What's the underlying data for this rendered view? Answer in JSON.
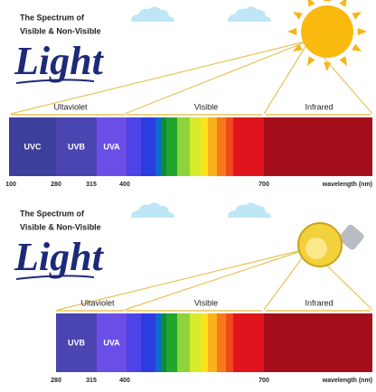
{
  "panels": [
    {
      "title_line1": "The Spectrum of",
      "title_line2": "Visible & Non-Visible",
      "script_title": "Light",
      "regions": [
        "Ultaviolet",
        "Visible",
        "Infrared"
      ],
      "bands": [
        "UVC",
        "UVB",
        "UVA"
      ],
      "scale": [
        "100",
        "280",
        "315",
        "400",
        "700"
      ],
      "scale_unit": "wavelength (nm)"
    },
    {
      "title_line1": "The Spectrum of",
      "title_line2": "Visible & Non-Visible",
      "script_title": "Light",
      "regions": [
        "Ultaviolet",
        "Visible",
        "Infrared"
      ],
      "bands": [
        "UVB",
        "UVA"
      ],
      "scale": [
        "280",
        "315",
        "400",
        "700"
      ],
      "scale_unit": "wavelength (nm)"
    }
  ]
}
